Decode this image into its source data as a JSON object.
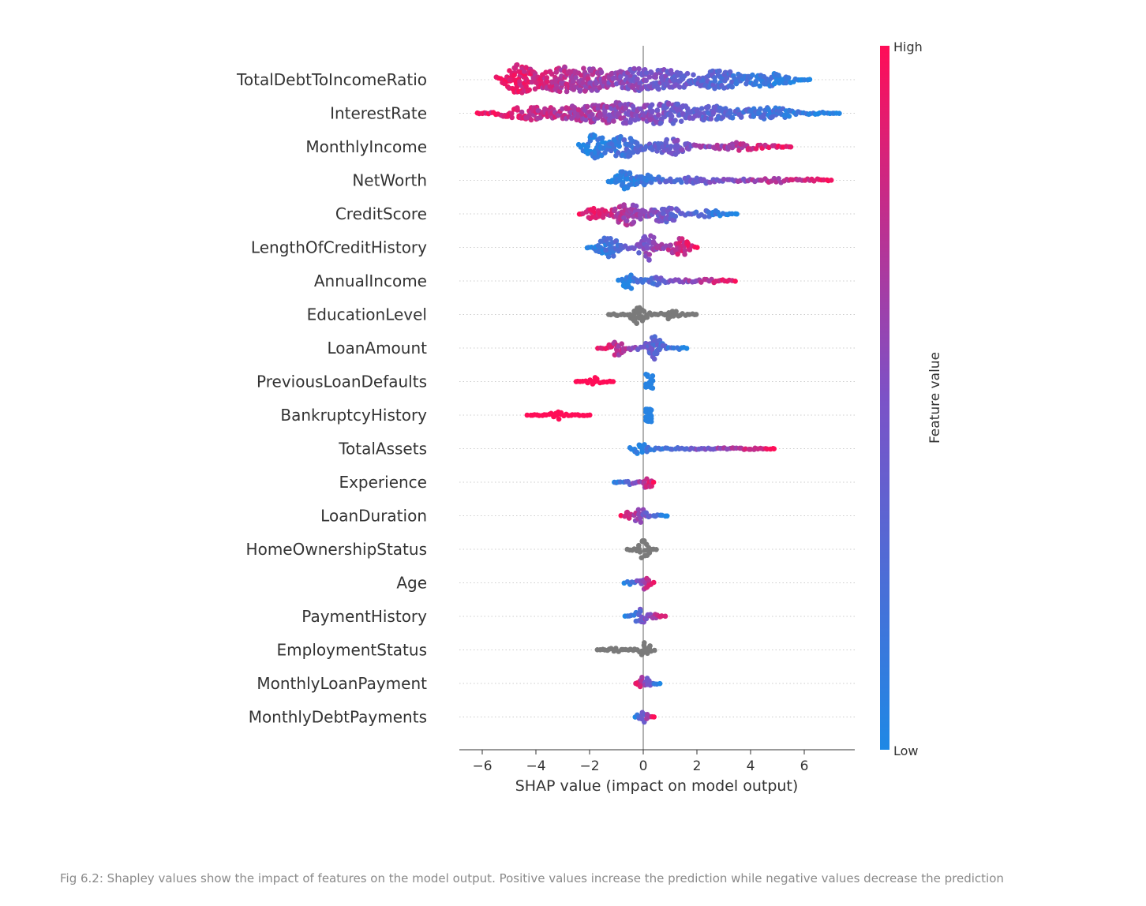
{
  "chart_data": {
    "type": "scatter",
    "subtype": "shap-beeswarm",
    "xlabel": "SHAP value (impact on model output)",
    "xlim": [
      -6.8,
      7.9
    ],
    "xticks": [
      -6,
      -4,
      -2,
      0,
      2,
      4,
      6
    ],
    "xtick_labels": [
      "−6",
      "−4",
      "−2",
      "0",
      "2",
      "4",
      "6"
    ],
    "colorbar": {
      "label": "Feature value",
      "high_label": "High",
      "low_label": "Low",
      "low_color": "#1e88e5",
      "mid_color": "#7c52c7",
      "high_color": "#ff0d57"
    },
    "gray_color": "#7a7a7a",
    "features": [
      {
        "name": "TotalDebtToIncomeRatio",
        "min": -5.5,
        "max": 6.2,
        "hi_side": "neg",
        "max_width": 1.0,
        "clusters": [
          [
            -4.8,
            1.0
          ],
          [
            -3.0,
            0.85
          ],
          [
            -2.1,
            0.8
          ],
          [
            -0.2,
            0.75
          ],
          [
            0.9,
            0.7
          ],
          [
            2.8,
            0.6
          ],
          [
            4.5,
            0.45
          ]
        ]
      },
      {
        "name": "InterestRate",
        "min": -6.2,
        "max": 7.3,
        "hi_side": "neg",
        "max_width": 0.8,
        "clusters": [
          [
            -4.0,
            0.6
          ],
          [
            -2.0,
            0.8
          ],
          [
            -1.0,
            0.9
          ],
          [
            0.8,
            0.95
          ],
          [
            2.5,
            0.6
          ],
          [
            4.5,
            0.5
          ]
        ]
      },
      {
        "name": "MonthlyIncome",
        "min": -2.4,
        "max": 5.5,
        "hi_side": "pos",
        "max_width": 0.9,
        "clusters": [
          [
            -2.0,
            1.0
          ],
          [
            -0.8,
            0.8
          ],
          [
            1.0,
            0.6
          ],
          [
            3.5,
            0.35
          ]
        ]
      },
      {
        "name": "NetWorth",
        "min": -1.3,
        "max": 7.0,
        "hi_side": "pos",
        "max_width": 0.75,
        "clusters": [
          [
            -1.0,
            1.0
          ],
          [
            0.0,
            0.5
          ],
          [
            2.0,
            0.3
          ],
          [
            5.0,
            0.2
          ]
        ]
      },
      {
        "name": "CreditScore",
        "min": -2.4,
        "max": 3.5,
        "hi_side": "neg",
        "max_width": 0.8,
        "clusters": [
          [
            -1.8,
            0.5
          ],
          [
            -0.6,
            0.95
          ],
          [
            0.8,
            0.7
          ],
          [
            2.5,
            0.3
          ]
        ]
      },
      {
        "name": "LengthOfCreditHistory",
        "min": -2.1,
        "max": 2.0,
        "hi_side": "pos",
        "max_width": 0.85,
        "clusters": [
          [
            -1.3,
            0.9
          ],
          [
            0.2,
            1.0
          ],
          [
            1.4,
            0.7
          ]
        ]
      },
      {
        "name": "AnnualIncome",
        "min": -0.9,
        "max": 3.4,
        "hi_side": "pos",
        "max_width": 0.7,
        "clusters": [
          [
            -0.7,
            1.0
          ],
          [
            0.5,
            0.5
          ],
          [
            2.5,
            0.25
          ]
        ]
      },
      {
        "name": "EducationLevel",
        "min": -1.3,
        "max": 2.0,
        "hi_side": "gray",
        "max_width": 0.65,
        "clusters": [
          [
            -0.2,
            1.0
          ],
          [
            1.0,
            0.5
          ]
        ]
      },
      {
        "name": "LoanAmount",
        "min": -1.7,
        "max": 1.6,
        "hi_side": "neg",
        "max_width": 0.85,
        "clusters": [
          [
            -1.0,
            0.6
          ],
          [
            0.4,
            1.0
          ]
        ]
      },
      {
        "name": "PreviousLoanDefaults",
        "min": -2.5,
        "max": -1.1,
        "hi_side": "const-high",
        "max_width": 0.28,
        "secondary": {
          "min": 0.1,
          "max": 0.35,
          "width": 0.5,
          "color": "low"
        },
        "clusters": [
          [
            -1.8,
            1.0
          ]
        ]
      },
      {
        "name": "BankruptcyHistory",
        "min": -4.3,
        "max": -2.0,
        "hi_side": "const-high",
        "max_width": 0.28,
        "secondary": {
          "min": 0.1,
          "max": 0.3,
          "width": 0.5,
          "color": "low"
        },
        "clusters": [
          [
            -3.2,
            1.0
          ]
        ]
      },
      {
        "name": "TotalAssets",
        "min": -0.5,
        "max": 4.9,
        "hi_side": "pos",
        "max_width": 0.5,
        "clusters": [
          [
            -0.3,
            1.0
          ],
          [
            1.5,
            0.2
          ]
        ]
      },
      {
        "name": "Experience",
        "min": -1.1,
        "max": 0.4,
        "hi_side": "pos",
        "max_width": 0.5,
        "clusters": [
          [
            0.2,
            1.0
          ],
          [
            -0.5,
            0.3
          ]
        ]
      },
      {
        "name": "LoanDuration",
        "min": -0.8,
        "max": 0.9,
        "hi_side": "neg",
        "max_width": 0.5,
        "clusters": [
          [
            -0.1,
            1.0
          ],
          [
            -0.5,
            0.6
          ]
        ]
      },
      {
        "name": "HomeOwnershipStatus",
        "min": -0.6,
        "max": 0.5,
        "hi_side": "gray",
        "max_width": 0.6,
        "clusters": [
          [
            0.0,
            1.0
          ]
        ]
      },
      {
        "name": "Age",
        "min": -0.7,
        "max": 0.4,
        "hi_side": "pos",
        "max_width": 0.5,
        "clusters": [
          [
            0.1,
            1.0
          ],
          [
            -0.4,
            0.4
          ]
        ]
      },
      {
        "name": "PaymentHistory",
        "min": -0.7,
        "max": 0.8,
        "hi_side": "pos",
        "max_width": 0.5,
        "clusters": [
          [
            -0.1,
            1.0
          ],
          [
            0.3,
            0.6
          ]
        ]
      },
      {
        "name": "EmploymentStatus",
        "min": -1.7,
        "max": 0.4,
        "hi_side": "gray",
        "max_width": 0.5,
        "clusters": [
          [
            0.1,
            1.0
          ],
          [
            -1.0,
            0.4
          ]
        ]
      },
      {
        "name": "MonthlyLoanPayment",
        "min": -0.3,
        "max": 0.6,
        "hi_side": "neg",
        "max_width": 0.5,
        "clusters": [
          [
            0.0,
            1.0
          ]
        ]
      },
      {
        "name": "MonthlyDebtPayments",
        "min": -0.3,
        "max": 0.4,
        "hi_side": "pos",
        "max_width": 0.4,
        "clusters": [
          [
            0.0,
            1.0
          ]
        ]
      }
    ]
  },
  "caption": "Fig 6.2: Shapley values show the impact of features on the model output. Positive values increase the prediction while negative values decrease the prediction"
}
